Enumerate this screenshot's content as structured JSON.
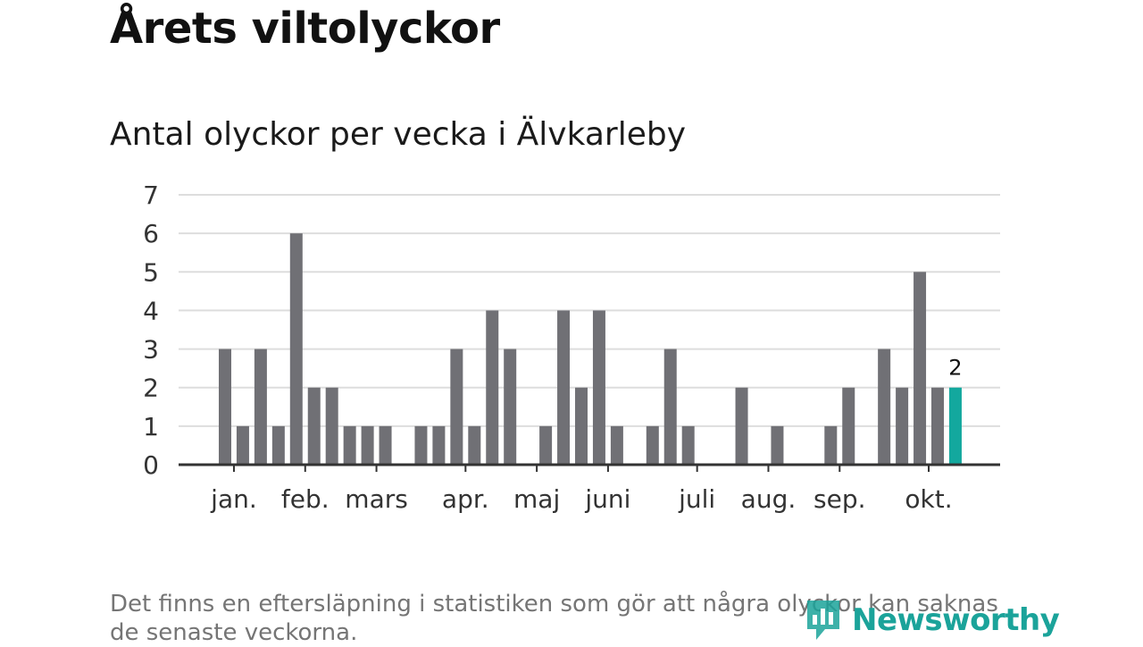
{
  "title": "Årets viltolyckor",
  "subtitle": "Antal olyckor per vecka i Älvkarleby",
  "footnote": "Det finns en eftersläpning i statistiken som gör att några olyckor kan saknas de senaste veckorna.",
  "brand": {
    "name": "Newsworthy",
    "color": "#1ba39a"
  },
  "colors": {
    "bar": "#707075",
    "highlight": "#13a89e",
    "grid": "#dddddd",
    "axis": "#333333"
  },
  "chart_data": {
    "type": "bar",
    "title": "Antal olyckor per vecka i Älvkarleby",
    "xlabel": "",
    "ylabel": "",
    "ylim": [
      0,
      7
    ],
    "yticks": [
      0,
      1,
      2,
      3,
      4,
      5,
      6,
      7
    ],
    "grid": true,
    "weeks": [
      1,
      2,
      3,
      4,
      5,
      6,
      7,
      8,
      9,
      10,
      11,
      12,
      13,
      14,
      15,
      16,
      17,
      18,
      19,
      20,
      21,
      22,
      23,
      24,
      25,
      26,
      27,
      28,
      29,
      30,
      31,
      32,
      33,
      34,
      35,
      36,
      37,
      38,
      39,
      40,
      41,
      42
    ],
    "values": [
      3,
      1,
      3,
      1,
      6,
      2,
      2,
      1,
      1,
      1,
      0,
      1,
      1,
      3,
      1,
      4,
      3,
      0,
      1,
      4,
      2,
      4,
      1,
      0,
      1,
      3,
      1,
      0,
      0,
      2,
      0,
      1,
      0,
      0,
      1,
      2,
      0,
      3,
      2,
      5,
      2,
      2
    ],
    "highlight_index": 41,
    "highlight_label": "2",
    "month_labels": [
      {
        "label": "jan.",
        "week": 1.5
      },
      {
        "label": "feb.",
        "week": 5.5
      },
      {
        "label": "mars",
        "week": 9.5
      },
      {
        "label": "apr.",
        "week": 14.5
      },
      {
        "label": "maj",
        "week": 18.5
      },
      {
        "label": "juni",
        "week": 22.5
      },
      {
        "label": "juli",
        "week": 27.5
      },
      {
        "label": "aug.",
        "week": 31.5
      },
      {
        "label": "sep.",
        "week": 35.5
      },
      {
        "label": "okt.",
        "week": 40.5
      }
    ]
  }
}
